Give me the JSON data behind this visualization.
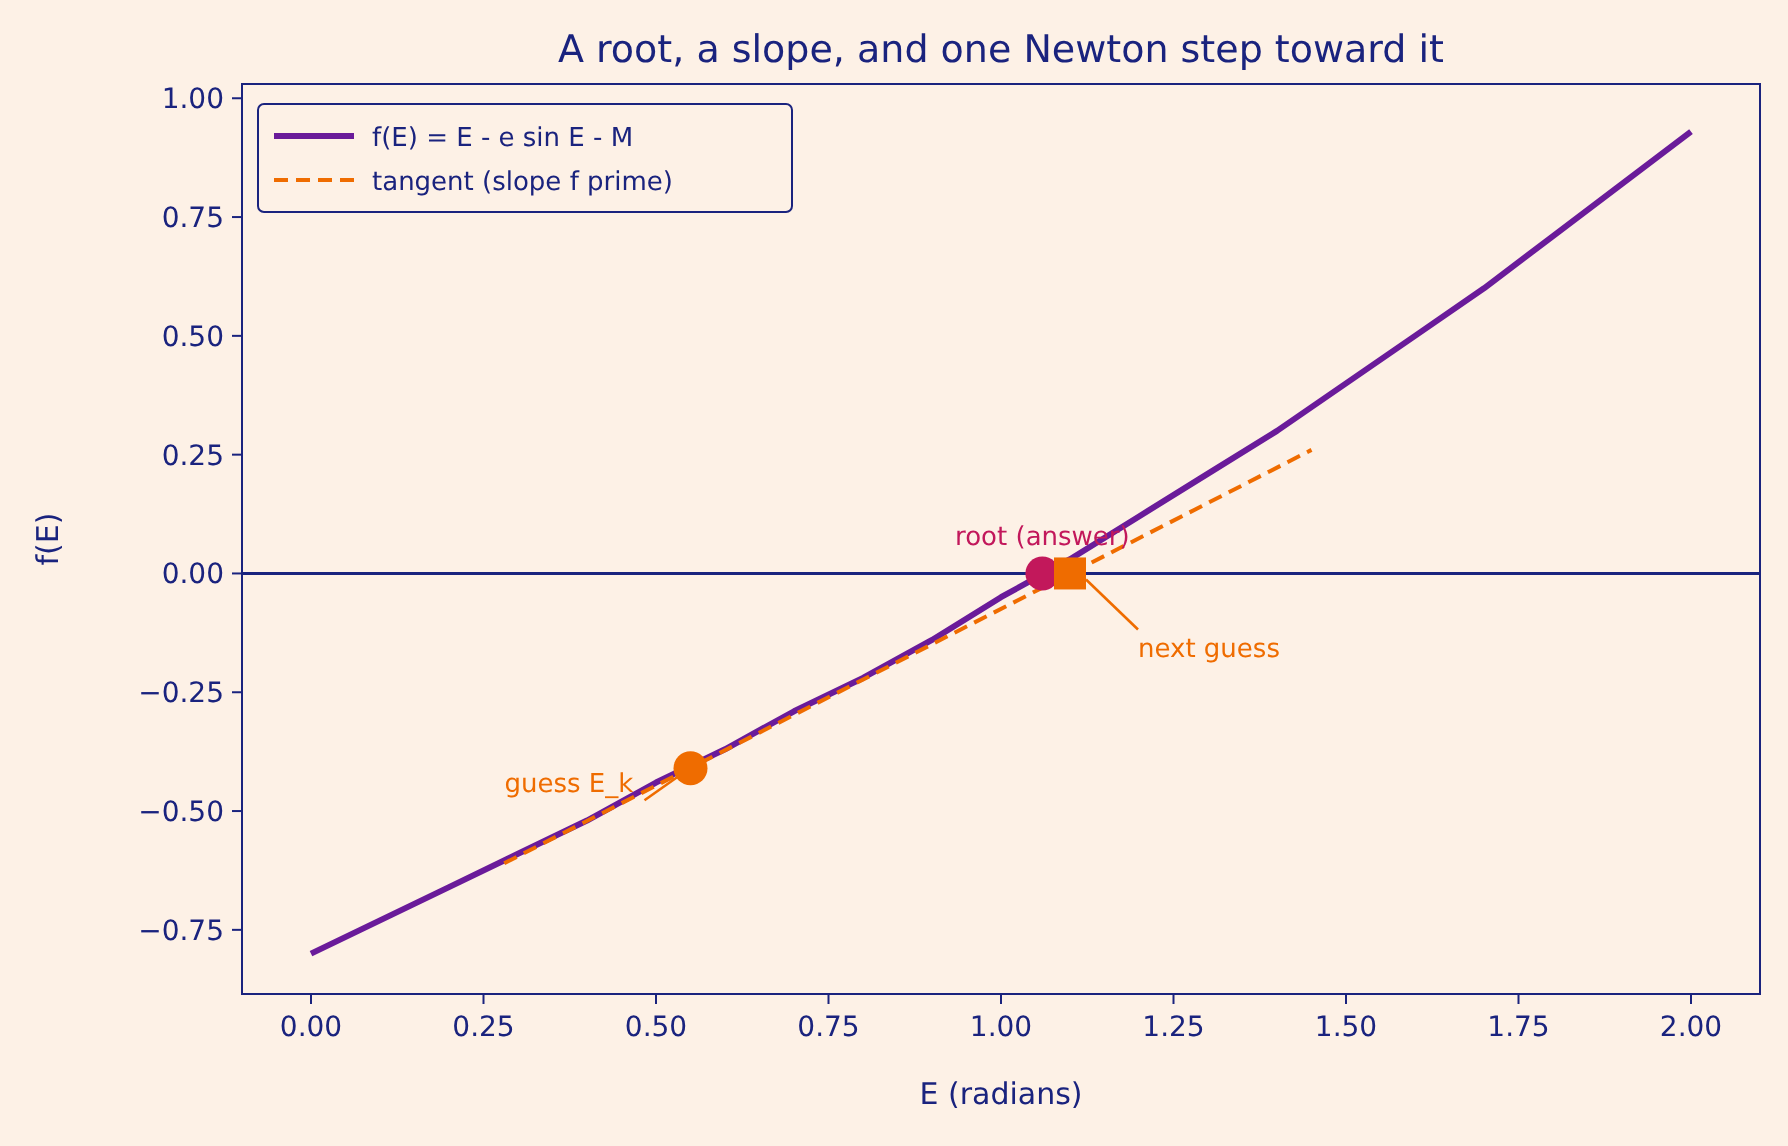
{
  "chart_data": {
    "type": "line",
    "title": "A root, a slope, and one Newton step toward it",
    "xlabel": "E  (radians)",
    "ylabel": "f(E)",
    "xlim": [
      -0.1,
      2.1
    ],
    "ylim": [
      -0.885,
      1.03
    ],
    "xticks": [
      {
        "value": 0,
        "label": "0.00"
      },
      {
        "value": 0.25,
        "label": "0.25"
      },
      {
        "value": 0.5,
        "label": "0.50"
      },
      {
        "value": 0.75,
        "label": "0.75"
      },
      {
        "value": 1,
        "label": "1.00"
      },
      {
        "value": 1.25,
        "label": "1.25"
      },
      {
        "value": 1.5,
        "label": "1.50"
      },
      {
        "value": 1.75,
        "label": "1.75"
      },
      {
        "value": 2,
        "label": "2.00"
      }
    ],
    "yticks": [
      {
        "value": -0.75,
        "label": "−0.75"
      },
      {
        "value": -0.5,
        "label": "−0.50"
      },
      {
        "value": -0.25,
        "label": "−0.25"
      },
      {
        "value": 0,
        "label": "0.00"
      },
      {
        "value": 0.25,
        "label": "0.25"
      },
      {
        "value": 0.5,
        "label": "0.50"
      },
      {
        "value": 0.75,
        "label": "0.75"
      },
      {
        "value": 1,
        "label": "1.00"
      }
    ],
    "grid": false,
    "legend": "top left",
    "series": [
      {
        "name": "f(E) = E - e sin E - M",
        "color": "#6a1b9a",
        "line_style": "solid",
        "x": [
          0,
          0.1,
          0.2,
          0.3,
          0.4,
          0.5,
          0.6,
          0.7,
          0.8,
          0.9,
          1.0,
          1.1,
          1.2,
          1.3,
          1.4,
          1.5,
          1.6,
          1.7,
          1.8,
          1.9,
          2.0
        ],
        "values": [
          -0.8,
          -0.73,
          -0.66,
          -0.59,
          -0.52,
          -0.44,
          -0.37,
          -0.29,
          -0.22,
          -0.14,
          -0.05,
          0.03,
          0.12,
          0.21,
          0.3,
          0.4,
          0.5,
          0.6,
          0.71,
          0.82,
          0.93
        ]
      },
      {
        "name": "tangent (slope f prime)",
        "color": "#ef6c00",
        "line_style": "dashed",
        "x": [
          0.28,
          1.45
        ],
        "values": [
          -0.61,
          0.26
        ]
      },
      {
        "type": "scatter",
        "color": "#c2185b",
        "marker": "circle",
        "x": [
          1.06
        ],
        "values": [
          0
        ]
      },
      {
        "type": "scatter",
        "color": "#ef6c00",
        "marker": "circle",
        "x": [
          0.55
        ],
        "values": [
          -0.41
        ]
      },
      {
        "type": "scatter",
        "color": "#ef6c00",
        "marker": "square",
        "x": [
          1.1
        ],
        "values": [
          0
        ]
      }
    ],
    "ref_lines": [
      {
        "axis": "y",
        "value": 0,
        "color": "#1a237e"
      }
    ],
    "annotations": [
      {
        "text": "root (answer)",
        "x": 1.06,
        "y": 0
      },
      {
        "text": "guess E_k",
        "x": 0.55,
        "y": -0.41
      },
      {
        "text": "next guess",
        "x": 1.1,
        "y": 0
      }
    ]
  }
}
